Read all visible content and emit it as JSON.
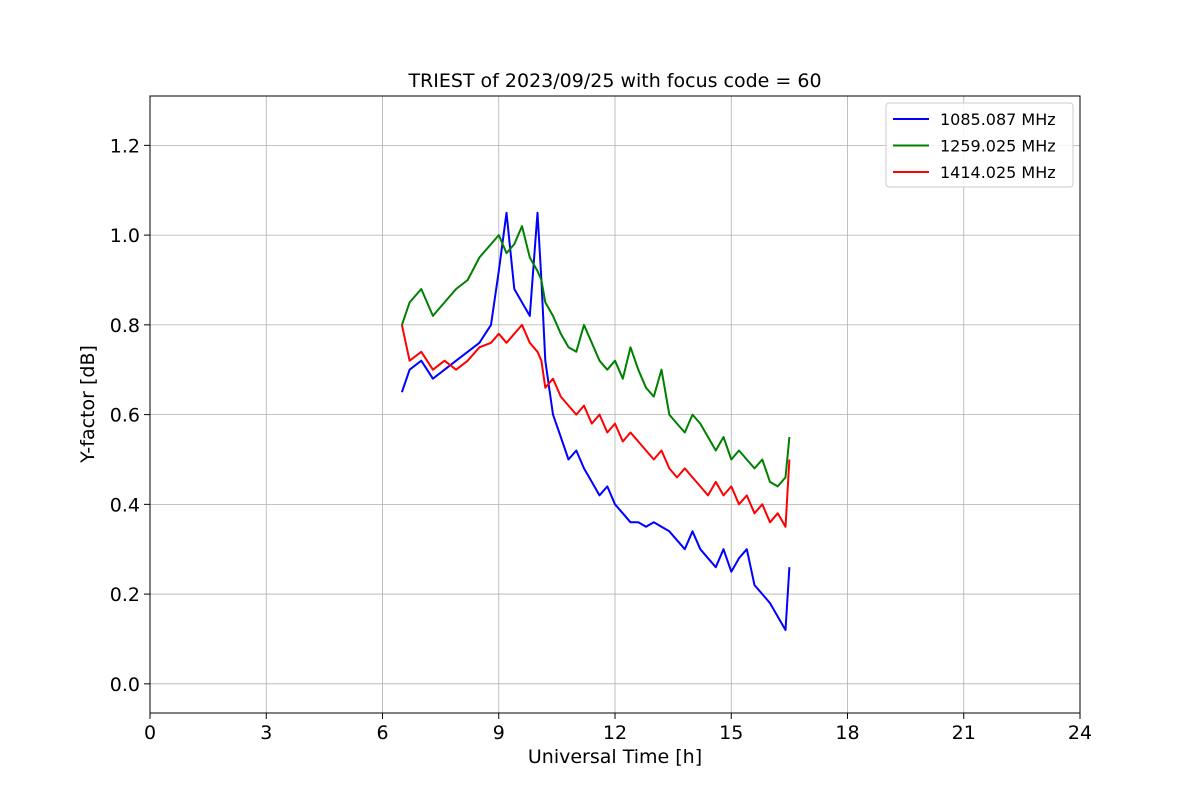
{
  "chart_data": {
    "type": "line",
    "title": "TRIEST of 2023/09/25 with focus code = 60",
    "xlabel": "Universal Time [h]",
    "ylabel": "Y-factor [dB]",
    "xlim": [
      0,
      24
    ],
    "ylim": [
      -0.065,
      1.31
    ],
    "xticks": [
      0,
      3,
      6,
      9,
      12,
      15,
      18,
      21,
      24
    ],
    "yticks": [
      0.0,
      0.2,
      0.4,
      0.6,
      0.8,
      1.0,
      1.2
    ],
    "xtick_labels": [
      "0",
      "3",
      "6",
      "9",
      "12",
      "15",
      "18",
      "21",
      "24"
    ],
    "ytick_labels": [
      "0.0",
      "0.2",
      "0.4",
      "0.6",
      "0.8",
      "1.0",
      "1.2"
    ],
    "grid": true,
    "legend_position": "top-right",
    "series": [
      {
        "name": "1085.087 MHz",
        "color": "#0000ff",
        "x": [
          6.5,
          6.7,
          7.0,
          7.3,
          7.6,
          7.9,
          8.2,
          8.5,
          8.8,
          9.0,
          9.2,
          9.4,
          9.6,
          9.8,
          10.0,
          10.1,
          10.2,
          10.4,
          10.6,
          10.8,
          11.0,
          11.2,
          11.4,
          11.6,
          11.8,
          12.0,
          12.2,
          12.4,
          12.6,
          12.8,
          13.0,
          13.2,
          13.4,
          13.6,
          13.8,
          14.0,
          14.2,
          14.4,
          14.6,
          14.8,
          15.0,
          15.2,
          15.4,
          15.6,
          15.8,
          16.0,
          16.2,
          16.4,
          16.5
        ],
        "y": [
          0.65,
          0.7,
          0.72,
          0.68,
          0.7,
          0.72,
          0.74,
          0.76,
          0.8,
          0.92,
          1.05,
          0.88,
          0.85,
          0.82,
          1.05,
          0.9,
          0.72,
          0.6,
          0.55,
          0.5,
          0.52,
          0.48,
          0.45,
          0.42,
          0.44,
          0.4,
          0.38,
          0.36,
          0.36,
          0.35,
          0.36,
          0.35,
          0.34,
          0.32,
          0.3,
          0.34,
          0.3,
          0.28,
          0.26,
          0.3,
          0.25,
          0.28,
          0.3,
          0.22,
          0.2,
          0.18,
          0.15,
          0.12,
          0.26
        ]
      },
      {
        "name": "1259.025 MHz",
        "color": "#008000",
        "x": [
          6.5,
          6.7,
          7.0,
          7.3,
          7.6,
          7.9,
          8.2,
          8.5,
          8.8,
          9.0,
          9.2,
          9.4,
          9.6,
          9.8,
          10.0,
          10.1,
          10.2,
          10.4,
          10.6,
          10.8,
          11.0,
          11.2,
          11.4,
          11.6,
          11.8,
          12.0,
          12.2,
          12.4,
          12.6,
          12.8,
          13.0,
          13.2,
          13.4,
          13.6,
          13.8,
          14.0,
          14.2,
          14.4,
          14.6,
          14.8,
          15.0,
          15.2,
          15.4,
          15.6,
          15.8,
          16.0,
          16.2,
          16.4,
          16.5
        ],
        "y": [
          0.8,
          0.85,
          0.88,
          0.82,
          0.85,
          0.88,
          0.9,
          0.95,
          0.98,
          1.0,
          0.96,
          0.98,
          1.02,
          0.95,
          0.92,
          0.9,
          0.85,
          0.82,
          0.78,
          0.75,
          0.74,
          0.8,
          0.76,
          0.72,
          0.7,
          0.72,
          0.68,
          0.75,
          0.7,
          0.66,
          0.64,
          0.7,
          0.6,
          0.58,
          0.56,
          0.6,
          0.58,
          0.55,
          0.52,
          0.55,
          0.5,
          0.52,
          0.5,
          0.48,
          0.5,
          0.45,
          0.44,
          0.46,
          0.55
        ]
      },
      {
        "name": "1414.025 MHz",
        "color": "#ff0000",
        "x": [
          6.5,
          6.7,
          7.0,
          7.3,
          7.6,
          7.9,
          8.2,
          8.5,
          8.8,
          9.0,
          9.2,
          9.4,
          9.6,
          9.8,
          10.0,
          10.1,
          10.2,
          10.4,
          10.6,
          10.8,
          11.0,
          11.2,
          11.4,
          11.6,
          11.8,
          12.0,
          12.2,
          12.4,
          12.6,
          12.8,
          13.0,
          13.2,
          13.4,
          13.6,
          13.8,
          14.0,
          14.2,
          14.4,
          14.6,
          14.8,
          15.0,
          15.2,
          15.4,
          15.6,
          15.8,
          16.0,
          16.2,
          16.4,
          16.5
        ],
        "y": [
          0.8,
          0.72,
          0.74,
          0.7,
          0.72,
          0.7,
          0.72,
          0.75,
          0.76,
          0.78,
          0.76,
          0.78,
          0.8,
          0.76,
          0.74,
          0.72,
          0.66,
          0.68,
          0.64,
          0.62,
          0.6,
          0.62,
          0.58,
          0.6,
          0.56,
          0.58,
          0.54,
          0.56,
          0.54,
          0.52,
          0.5,
          0.52,
          0.48,
          0.46,
          0.48,
          0.46,
          0.44,
          0.42,
          0.45,
          0.42,
          0.44,
          0.4,
          0.42,
          0.38,
          0.4,
          0.36,
          0.38,
          0.35,
          0.5
        ]
      }
    ]
  }
}
